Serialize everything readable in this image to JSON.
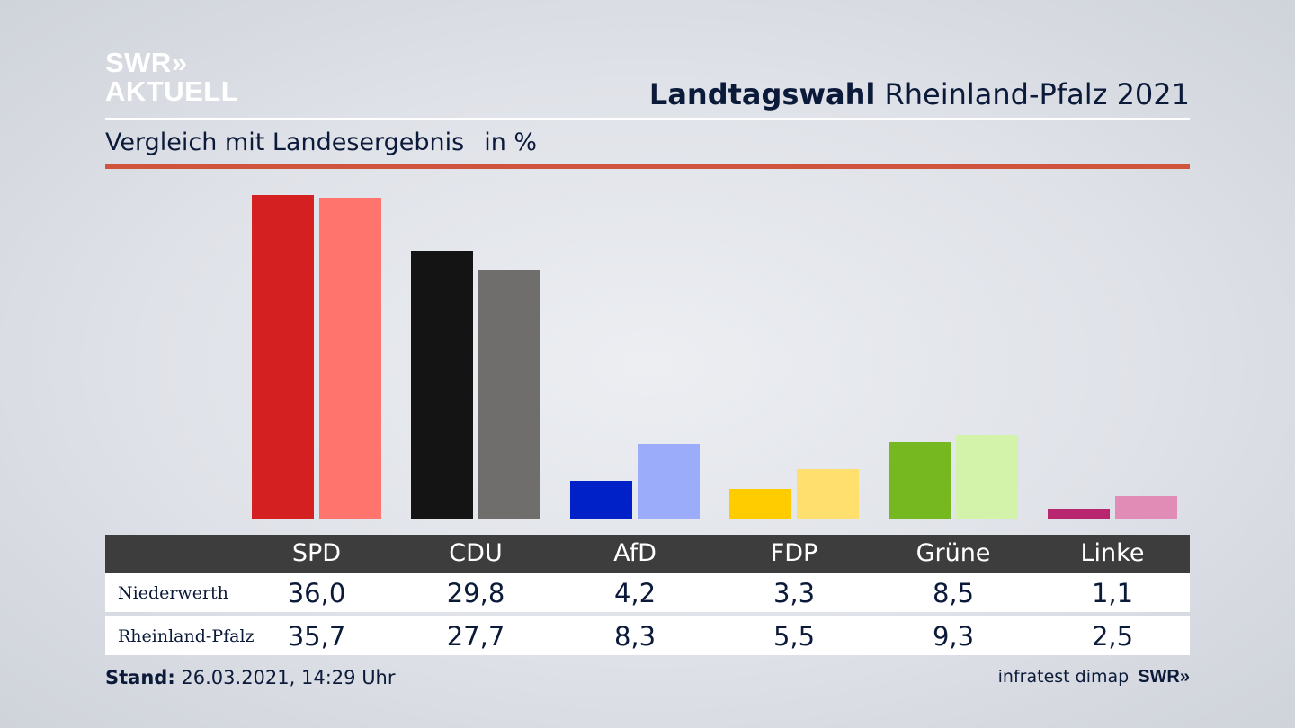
{
  "logo": {
    "line1": "SWR»",
    "line2": "AKTUELL"
  },
  "header": {
    "title_bold": "Landtagswahl",
    "title_rest": "Rheinland-Pfalz 2021"
  },
  "subtitle": {
    "text": "Vergleich mit Landesergebnis",
    "unit": "in %"
  },
  "chart_data": {
    "type": "bar",
    "categories": [
      "SPD",
      "CDU",
      "AfD",
      "FDP",
      "Grüne",
      "Linke"
    ],
    "series": [
      {
        "name": "Niederwerth",
        "values": [
          36.0,
          29.8,
          4.2,
          3.3,
          8.5,
          1.1
        ],
        "colors": [
          "#d52021",
          "#141414",
          "#0020c8",
          "#ffcc00",
          "#76b820",
          "#b8266f"
        ]
      },
      {
        "name": "Rheinland-Pfalz",
        "values": [
          35.7,
          27.7,
          8.3,
          5.5,
          9.3,
          2.5
        ],
        "colors": [
          "#ff756d",
          "#6f6e6c",
          "#9aacfa",
          "#ffe06e",
          "#d3f3ab",
          "#e08cb7"
        ]
      }
    ]
  },
  "table": {
    "rows": [
      {
        "label": "Niederwerth",
        "values": [
          "36,0",
          "29,8",
          "4,2",
          "3,3",
          "8,5",
          "1,1"
        ]
      },
      {
        "label": "Rheinland-Pfalz",
        "values": [
          "35,7",
          "27,7",
          "8,3",
          "5,5",
          "9,3",
          "2,5"
        ]
      }
    ]
  },
  "footer": {
    "stand_label": "Stand:",
    "stand_value": "26.03.2021, 14:29 Uhr",
    "source": "infratest dimap",
    "brand": "SWR»"
  }
}
